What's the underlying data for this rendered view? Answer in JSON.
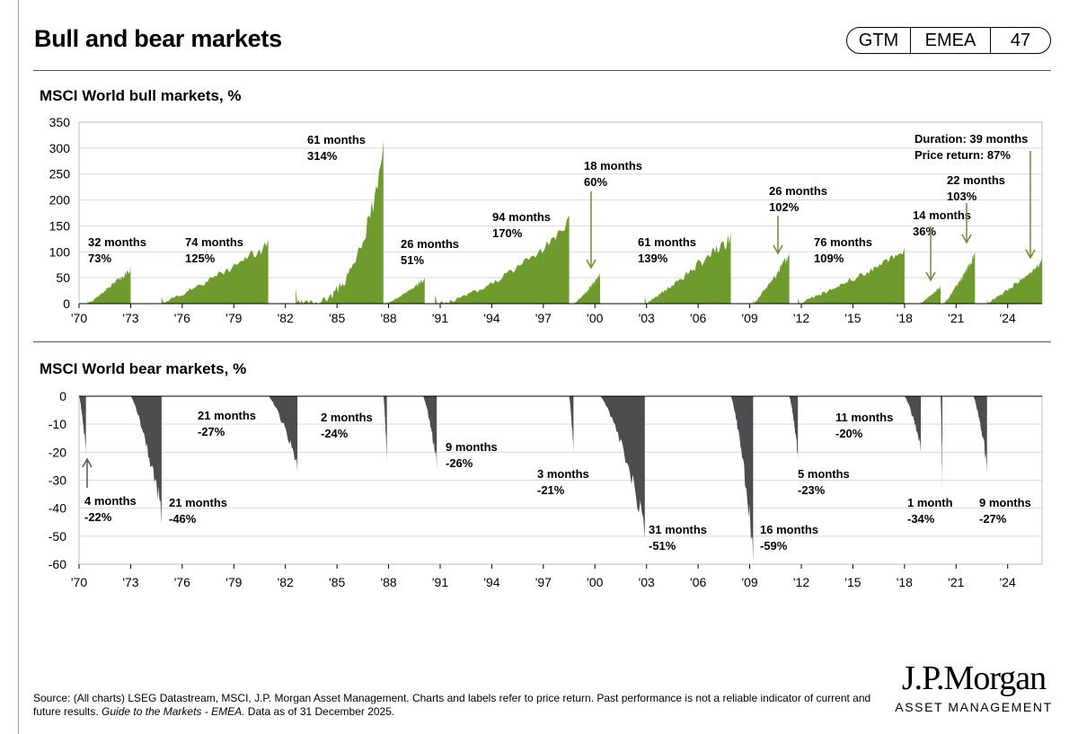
{
  "header": {
    "title": "Bull and bear markets",
    "badge": [
      "GTM",
      "EMEA",
      "47"
    ]
  },
  "colors": {
    "bull": "#6f9a2e",
    "bear": "#4d4d4f",
    "arrow_bull": "#6f8a2e",
    "arrow_bear": "#555555"
  },
  "chart_data": [
    {
      "type": "area",
      "title": "MSCI World bull markets, %",
      "ylim": [
        0,
        350
      ],
      "yticks": [
        "0",
        "50",
        "100",
        "150",
        "200",
        "250",
        "300",
        "350"
      ],
      "xtick_labels": [
        "'70",
        "'73",
        "'76",
        "'79",
        "'82",
        "'85",
        "'88",
        "'91",
        "'94",
        "'97",
        "'00",
        "'03",
        "'06",
        "'09",
        "'12",
        "'15",
        "'18",
        "'21",
        "'24"
      ],
      "xtick_years": [
        1970,
        1973,
        1976,
        1979,
        1982,
        1985,
        1988,
        1991,
        1994,
        1997,
        2000,
        2003,
        2006,
        2009,
        2012,
        2015,
        2018,
        2021,
        2024
      ],
      "xlim": [
        1970,
        2026
      ],
      "series": [
        {
          "start": 1970.5,
          "end": 1973.0,
          "peak": 73,
          "months": "32 months",
          "pct": "73%"
        },
        {
          "start": 1974.8,
          "end": 1981.0,
          "peak": 125,
          "months": "74 months",
          "pct": "125%"
        },
        {
          "start": 1982.6,
          "end": 1987.7,
          "peak": 314,
          "months": "61 months",
          "pct": "314%"
        },
        {
          "start": 1987.9,
          "end": 1990.1,
          "peak": 51,
          "months": "26 months",
          "pct": "51%"
        },
        {
          "start": 1990.7,
          "end": 1998.5,
          "peak": 170,
          "months": "94 months",
          "pct": "170%"
        },
        {
          "start": 1998.8,
          "end": 2000.3,
          "peak": 60,
          "months": "18 months",
          "pct": "60%"
        },
        {
          "start": 2002.9,
          "end": 2007.9,
          "peak": 139,
          "months": "61 months",
          "pct": "139%"
        },
        {
          "start": 2009.2,
          "end": 2011.3,
          "peak": 102,
          "months": "26 months",
          "pct": "102%"
        },
        {
          "start": 2011.8,
          "end": 2018.0,
          "peak": 109,
          "months": "76 months",
          "pct": "109%"
        },
        {
          "start": 2018.9,
          "end": 2020.1,
          "peak": 36,
          "months": "14 months",
          "pct": "36%"
        },
        {
          "start": 2020.3,
          "end": 2022.1,
          "peak": 103,
          "months": "22 months",
          "pct": "103%"
        },
        {
          "start": 2022.8,
          "end": 2026.0,
          "peak": 87,
          "months": "Duration: 39 months",
          "pct": "Price return: 87%"
        }
      ]
    },
    {
      "type": "area",
      "title": "MSCI World bear markets, %",
      "ylim": [
        -60,
        0
      ],
      "yticks": [
        "0",
        "-10",
        "-20",
        "-30",
        "-40",
        "-50",
        "-60"
      ],
      "xtick_labels": [
        "'70",
        "'73",
        "'76",
        "'79",
        "'82",
        "'85",
        "'88",
        "'91",
        "'94",
        "'97",
        "'00",
        "'03",
        "'06",
        "'09",
        "'12",
        "'15",
        "'18",
        "'21",
        "'24"
      ],
      "xtick_years": [
        1970,
        1973,
        1976,
        1979,
        1982,
        1985,
        1988,
        1991,
        1994,
        1997,
        2000,
        2003,
        2006,
        2009,
        2012,
        2015,
        2018,
        2021,
        2024
      ],
      "xlim": [
        1970,
        2026
      ],
      "series": [
        {
          "start": 1970.0,
          "end": 1970.4,
          "trough": -22,
          "months": "4 months",
          "pct": "-22%"
        },
        {
          "start": 1973.0,
          "end": 1974.8,
          "trough": -46,
          "months": "21 months",
          "pct": "-46%"
        },
        {
          "start": 1981.0,
          "end": 1982.7,
          "trough": -27,
          "months": "21 months",
          "pct": "-27%"
        },
        {
          "start": 1987.7,
          "end": 1987.9,
          "trough": -24,
          "months": "2 months",
          "pct": "-24%"
        },
        {
          "start": 1990.0,
          "end": 1990.8,
          "trough": -26,
          "months": "9 months",
          "pct": "-26%"
        },
        {
          "start": 1998.5,
          "end": 1998.75,
          "trough": -21,
          "months": "3 months",
          "pct": "-21%"
        },
        {
          "start": 2000.3,
          "end": 2002.9,
          "trough": -51,
          "months": "31 months",
          "pct": "-51%"
        },
        {
          "start": 2007.9,
          "end": 2009.2,
          "trough": -59,
          "months": "16 months",
          "pct": "-59%"
        },
        {
          "start": 2011.3,
          "end": 2011.8,
          "trough": -23,
          "months": "5 months",
          "pct": "-23%"
        },
        {
          "start": 2018.0,
          "end": 2018.95,
          "trough": -20,
          "months": "11 months",
          "pct": "-20%"
        },
        {
          "start": 2020.1,
          "end": 2020.2,
          "trough": -34,
          "months": "1 month",
          "pct": "-34%"
        },
        {
          "start": 2022.0,
          "end": 2022.8,
          "trough": -27,
          "months": "9 months",
          "pct": "-27%"
        }
      ]
    }
  ],
  "footer": {
    "source": "Source: (All charts) LSEG Datastream, MSCI, J.P. Morgan Asset Management. Charts and labels refer to price return. Past performance is not a reliable indicator of current and future results.",
    "guide": "Guide to the Markets - EMEA.",
    "asof": "Data as of 31 December 2025."
  },
  "logo": {
    "name": "J.P.Morgan",
    "sub": "ASSET MANAGEMENT"
  }
}
